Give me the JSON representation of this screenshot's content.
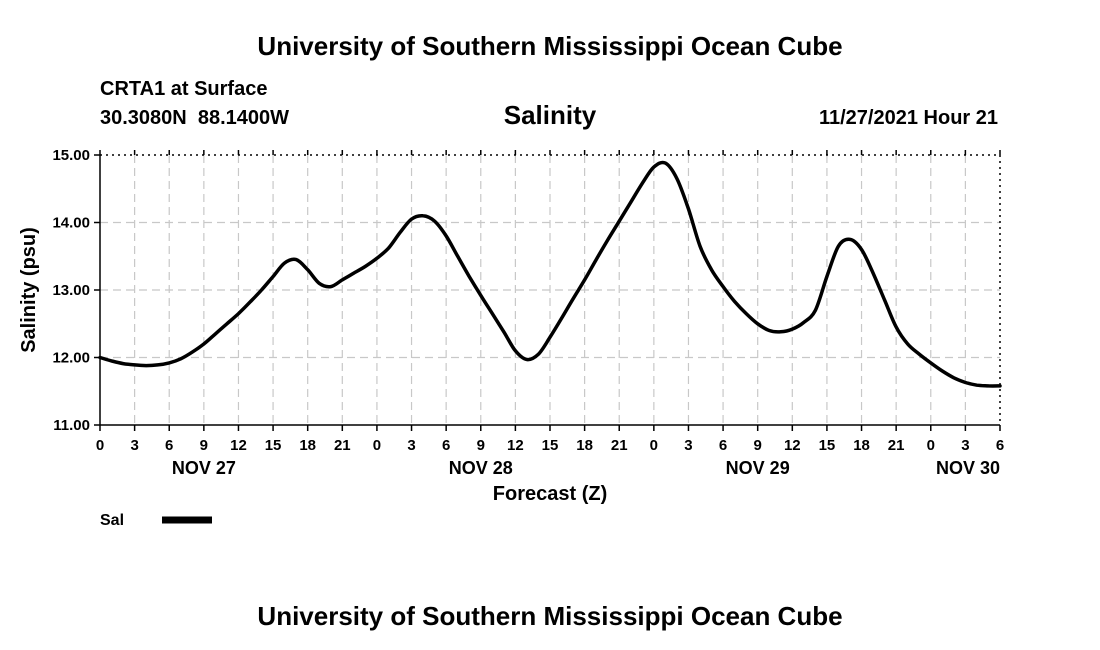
{
  "header": {
    "title": "University of Southern Mississippi Ocean Cube",
    "station": "CRTA1 at Surface",
    "coords": "30.3080N  88.1400W",
    "variable": "Salinity",
    "datetime": "11/27/2021 Hour 21"
  },
  "footer": {
    "title": "University of Southern Mississippi Ocean Cube"
  },
  "chart_data": {
    "type": "line",
    "title": "Salinity",
    "xlabel": "Forecast (Z)",
    "ylabel": "Salinity (psu)",
    "ylim": [
      11.0,
      15.0
    ],
    "y_ticks": [
      "11.00",
      "12.00",
      "13.00",
      "14.00",
      "15.00"
    ],
    "x_range_hours": [
      0,
      78
    ],
    "x_tick_labels": [
      "0",
      "3",
      "6",
      "9",
      "12",
      "15",
      "18",
      "21",
      "0",
      "3",
      "6",
      "9",
      "12",
      "15",
      "18",
      "21",
      "0",
      "3",
      "6",
      "9",
      "12",
      "15",
      "18",
      "21",
      "0",
      "3",
      "6"
    ],
    "date_labels": [
      {
        "hour": 9,
        "label": "NOV 27"
      },
      {
        "hour": 33,
        "label": "NOV 28"
      },
      {
        "hour": 57,
        "label": "NOV 29"
      },
      {
        "hour": 78,
        "label": "NOV 30"
      }
    ],
    "grid": true,
    "legend": [
      {
        "name": "Sal",
        "position": "bottom-left"
      }
    ],
    "series": [
      {
        "name": "Sal",
        "x": [
          0,
          1,
          2,
          3,
          4,
          5,
          6,
          7,
          8,
          9,
          10,
          11,
          12,
          13,
          14,
          15,
          16,
          17,
          18,
          19,
          20,
          21,
          22,
          23,
          24,
          25,
          26,
          27,
          28,
          29,
          30,
          31,
          32,
          33,
          34,
          35,
          36,
          37,
          38,
          39,
          40,
          41,
          42,
          43,
          44,
          45,
          46,
          47,
          48,
          49,
          50,
          51,
          52,
          53,
          54,
          55,
          56,
          57,
          58,
          59,
          60,
          61,
          62,
          63,
          64,
          65,
          66,
          67,
          68,
          69,
          70,
          71,
          72,
          73,
          74,
          75,
          76,
          77,
          78
        ],
        "values": [
          12.0,
          11.95,
          11.91,
          11.89,
          11.88,
          11.89,
          11.92,
          11.98,
          12.08,
          12.2,
          12.35,
          12.5,
          12.65,
          12.82,
          13.0,
          13.2,
          13.4,
          13.45,
          13.3,
          13.1,
          13.05,
          13.15,
          13.25,
          13.35,
          13.47,
          13.62,
          13.85,
          14.05,
          14.1,
          14.02,
          13.8,
          13.5,
          13.2,
          12.92,
          12.65,
          12.38,
          12.1,
          11.97,
          12.05,
          12.3,
          12.58,
          12.87,
          13.15,
          13.45,
          13.74,
          14.02,
          14.3,
          14.58,
          14.82,
          14.88,
          14.65,
          14.2,
          13.65,
          13.3,
          13.05,
          12.83,
          12.65,
          12.5,
          12.4,
          12.38,
          12.42,
          12.52,
          12.7,
          13.2,
          13.65,
          13.75,
          13.6,
          13.25,
          12.85,
          12.45,
          12.2,
          12.05,
          11.92,
          11.8,
          11.7,
          11.63,
          11.59,
          11.58,
          11.58
        ]
      }
    ]
  }
}
